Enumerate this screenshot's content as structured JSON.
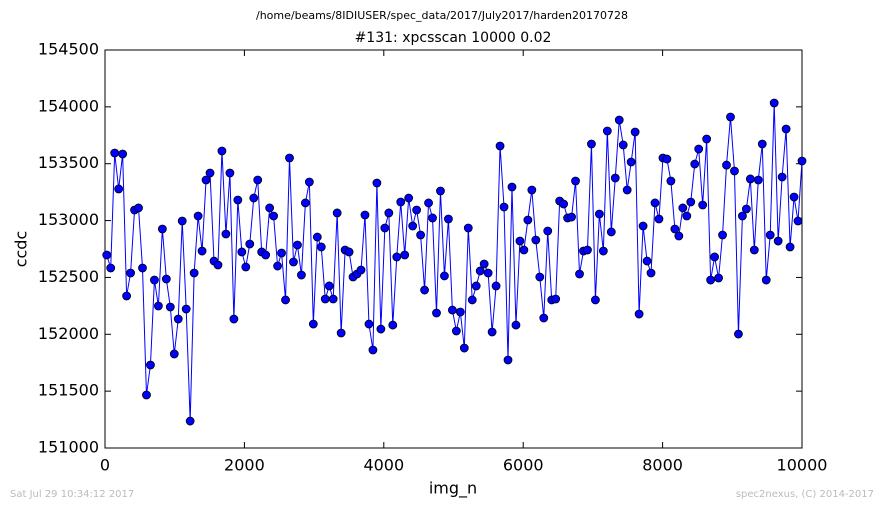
{
  "chart_data": {
    "type": "line",
    "suptitle": "/home/beams/8IDIUSER/spec_data/2017/July2017/harden20170728",
    "title": "#131: xpcsscan 10000 0.02",
    "xlabel": "img_n",
    "ylabel": "ccdc",
    "xlim": [
      0,
      10000
    ],
    "xticks": [
      0,
      2000,
      4000,
      6000,
      8000,
      10000
    ],
    "ylim": [
      151000,
      154500
    ],
    "yticks": [
      151000,
      151500,
      152000,
      152500,
      153000,
      153500,
      154000,
      154500
    ],
    "grid": false,
    "x": [
      25,
      82,
      139,
      196,
      253,
      310,
      367,
      424,
      481,
      538,
      595,
      652,
      709,
      766,
      823,
      880,
      937,
      994,
      1051,
      1108,
      1165,
      1222,
      1279,
      1336,
      1393,
      1450,
      1507,
      1564,
      1621,
      1678,
      1735,
      1792,
      1849,
      1906,
      1963,
      2020,
      2077,
      2134,
      2191,
      2248,
      2305,
      2362,
      2419,
      2476,
      2533,
      2590,
      2647,
      2704,
      2761,
      2818,
      2875,
      2932,
      2989,
      3046,
      3103,
      3160,
      3217,
      3274,
      3331,
      3388,
      3445,
      3502,
      3559,
      3616,
      3673,
      3730,
      3787,
      3844,
      3901,
      3958,
      4015,
      4072,
      4129,
      4186,
      4243,
      4300,
      4357,
      4414,
      4471,
      4528,
      4585,
      4642,
      4699,
      4756,
      4813,
      4870,
      4927,
      4984,
      5041,
      5098,
      5155,
      5212,
      5269,
      5326,
      5383,
      5440,
      5497,
      5554,
      5611,
      5668,
      5725,
      5782,
      5839,
      5896,
      5953,
      6010,
      6067,
      6124,
      6181,
      6238,
      6295,
      6352,
      6409,
      6466,
      6523,
      6580,
      6637,
      6694,
      6751,
      6808,
      6865,
      6922,
      6979,
      7036,
      7093,
      7150,
      7207,
      7264,
      7321,
      7378,
      7435,
      7492,
      7549,
      7606,
      7663,
      7720,
      7777,
      7834,
      7891,
      7948,
      8005,
      8062,
      8119,
      8176,
      8233,
      8290,
      8347,
      8404,
      8461,
      8518,
      8575,
      8632,
      8689,
      8746,
      8803,
      8860,
      8917,
      8974,
      9031,
      9088,
      9145,
      9202,
      9259,
      9316,
      9373,
      9430,
      9487,
      9544,
      9601,
      9658,
      9715,
      9772,
      9829,
      9886,
      9943,
      10000
    ],
    "series": [
      {
        "name": "ccdc",
        "color": "#0000ff",
        "marker_edge": "#000000",
        "values": [
          152697,
          152583,
          153594,
          153278,
          153585,
          152337,
          152539,
          153093,
          153111,
          152583,
          151466,
          151730,
          152477,
          152249,
          152926,
          152486,
          152240,
          151827,
          152134,
          152996,
          152222,
          151237,
          152539,
          153040,
          152732,
          153357,
          153418,
          152644,
          152609,
          153612,
          152882,
          153418,
          152134,
          153181,
          152724,
          152592,
          152794,
          153198,
          153357,
          152724,
          152697,
          153111,
          153040,
          152600,
          152715,
          152302,
          153550,
          152636,
          152785,
          152521,
          153155,
          153339,
          152090,
          152855,
          152768,
          152310,
          152425,
          152310,
          153067,
          152011,
          152741,
          152724,
          152504,
          152530,
          152565,
          153049,
          152090,
          151862,
          153330,
          152046,
          152935,
          153067,
          152081,
          152680,
          153163,
          152697,
          153198,
          152952,
          153093,
          152873,
          152389,
          153155,
          153023,
          152187,
          153260,
          152513,
          153014,
          152213,
          152029,
          152196,
          151879,
          152935,
          152302,
          152425,
          152557,
          152618,
          152539,
          152020,
          152425,
          153656,
          153119,
          151774,
          153295,
          152081,
          152820,
          152741,
          153005,
          153269,
          152829,
          152504,
          152143,
          152908,
          152302,
          152310,
          153172,
          153146,
          153023,
          153031,
          153348,
          152530,
          152732,
          152741,
          153673,
          152302,
          153058,
          152732,
          153788,
          152900,
          153374,
          153884,
          153665,
          153269,
          153515,
          153779,
          152178,
          152952,
          152644,
          152539,
          153155,
          153014,
          153550,
          153541,
          153348,
          152926,
          152864,
          153111,
          153040,
          153163,
          153497,
          153629,
          153137,
          153717,
          152477,
          152680,
          152495,
          152873,
          153488,
          153911,
          153436,
          152002,
          153040,
          153102,
          153366,
          152741,
          153357,
          153673,
          152477,
          152873,
          154034,
          152820,
          153383,
          153805,
          152768,
          153207,
          152996,
          153524
        ]
      }
    ]
  },
  "footer": {
    "left": "Sat Jul 29 10:34:12 2017",
    "right": "spec2nexus, (C) 2014-2017"
  }
}
